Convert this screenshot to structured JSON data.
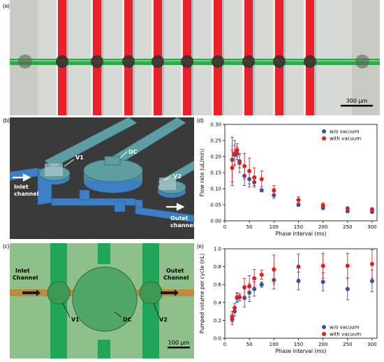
{
  "panels": {
    "a": {
      "label": "(a)",
      "scale_bar": "300 µm",
      "colors": {
        "valve": "#e8212b",
        "channel": "#2fa84a",
        "background": "#d9dcd7"
      }
    },
    "b": {
      "label": "(b)",
      "labels": {
        "v1": "V1",
        "dc": "DC",
        "v2": "V2",
        "inlet": "Inlet channel",
        "outlet": "Outet channel"
      },
      "colors": {
        "background": "#3a3a3a",
        "control": "#5e9ea3",
        "fluid": "#3d7fc4"
      }
    },
    "c": {
      "label": "(c)",
      "labels": {
        "inlet": "Inlet Channel",
        "outlet": "Outet Channel",
        "v1": "V1",
        "dc": "DC",
        "v2": "V2"
      },
      "scale_bar": "100 µm",
      "colors": {
        "background": "#8fbf8a",
        "control": "#1fa65a",
        "fluid": "#c28a3c"
      }
    },
    "d": {
      "label": "(d)"
    },
    "e": {
      "label": "(e)"
    }
  },
  "chart_data": [
    {
      "type": "scatter",
      "panel": "d",
      "xlabel": "Phase interval (ms)",
      "ylabel": "Flow rate (uL/min)",
      "xlim": [
        0,
        310
      ],
      "ylim": [
        0,
        0.3
      ],
      "xticks": [
        0,
        50,
        100,
        150,
        200,
        250,
        300
      ],
      "yticks": [
        0.0,
        0.05,
        0.1,
        0.15,
        0.2,
        0.25,
        0.3
      ],
      "ytick_labels": [
        "0.00",
        "0.05",
        "0.10",
        "0.15",
        "0.20",
        "0.25",
        "0.30"
      ],
      "legend_position": "top-right",
      "series": [
        {
          "name": "w/o vacuum",
          "color": "#3b4fa8",
          "points": [
            {
              "x": 15,
              "y": 0.19,
              "err": 0.07
            },
            {
              "x": 20,
              "y": 0.205,
              "err": 0.03
            },
            {
              "x": 25,
              "y": 0.21,
              "err": 0.02
            },
            {
              "x": 30,
              "y": 0.185,
              "err": 0.02
            },
            {
              "x": 40,
              "y": 0.14,
              "err": 0.03
            },
            {
              "x": 50,
              "y": 0.13,
              "err": 0.025
            },
            {
              "x": 60,
              "y": 0.12,
              "err": 0.01
            },
            {
              "x": 75,
              "y": 0.095,
              "err": 0.005
            },
            {
              "x": 100,
              "y": 0.08,
              "err": 0.01
            },
            {
              "x": 150,
              "y": 0.05,
              "err": 0.005
            },
            {
              "x": 200,
              "y": 0.04,
              "err": 0.005
            },
            {
              "x": 250,
              "y": 0.03,
              "err": 0.005
            },
            {
              "x": 300,
              "y": 0.028,
              "err": 0.005
            }
          ]
        },
        {
          "name": "with vacuum",
          "color": "#e02020",
          "points": [
            {
              "x": 15,
              "y": 0.165,
              "err": 0.055
            },
            {
              "x": 20,
              "y": 0.21,
              "err": 0.04
            },
            {
              "x": 25,
              "y": 0.22,
              "err": 0.02
            },
            {
              "x": 30,
              "y": 0.18,
              "err": 0.03
            },
            {
              "x": 40,
              "y": 0.17,
              "err": 0.04
            },
            {
              "x": 50,
              "y": 0.155,
              "err": 0.04
            },
            {
              "x": 60,
              "y": 0.135,
              "err": 0.03
            },
            {
              "x": 75,
              "y": 0.13,
              "err": 0.025
            },
            {
              "x": 100,
              "y": 0.095,
              "err": 0.015
            },
            {
              "x": 150,
              "y": 0.065,
              "err": 0.01
            },
            {
              "x": 200,
              "y": 0.048,
              "err": 0.008
            },
            {
              "x": 250,
              "y": 0.038,
              "err": 0.006
            },
            {
              "x": 300,
              "y": 0.035,
              "err": 0.006
            }
          ]
        }
      ]
    },
    {
      "type": "scatter",
      "panel": "e",
      "xlabel": "Phase interval (ms)",
      "ylabel": "Pumped volume per cycle (nL)",
      "xlim": [
        0,
        310
      ],
      "ylim": [
        0,
        1.0
      ],
      "xticks": [
        0,
        50,
        100,
        150,
        200,
        250,
        300
      ],
      "yticks": [
        0.0,
        0.2,
        0.4,
        0.6,
        0.8,
        1.0
      ],
      "ytick_labels": [
        "0.0",
        "0.2",
        "0.4",
        "0.6",
        "0.8",
        "1.0"
      ],
      "legend_position": "bottom-right",
      "series": [
        {
          "name": "w/o vacuum",
          "color": "#3b4fa8",
          "points": [
            {
              "x": 15,
              "y": 0.21,
              "err": 0.06
            },
            {
              "x": 20,
              "y": 0.3,
              "err": 0.05
            },
            {
              "x": 25,
              "y": 0.45,
              "err": 0.05
            },
            {
              "x": 30,
              "y": 0.46,
              "err": 0.04
            },
            {
              "x": 40,
              "y": 0.45,
              "err": 0.1
            },
            {
              "x": 50,
              "y": 0.51,
              "err": 0.1
            },
            {
              "x": 60,
              "y": 0.55,
              "err": 0.08
            },
            {
              "x": 75,
              "y": 0.6,
              "err": 0.03
            },
            {
              "x": 100,
              "y": 0.65,
              "err": 0.1
            },
            {
              "x": 150,
              "y": 0.64,
              "err": 0.1
            },
            {
              "x": 200,
              "y": 0.63,
              "err": 0.1
            },
            {
              "x": 250,
              "y": 0.55,
              "err": 0.12
            },
            {
              "x": 300,
              "y": 0.64,
              "err": 0.12
            }
          ]
        },
        {
          "name": "with vacuum",
          "color": "#e02020",
          "points": [
            {
              "x": 15,
              "y": 0.24,
              "err": 0.06
            },
            {
              "x": 20,
              "y": 0.34,
              "err": 0.05
            },
            {
              "x": 25,
              "y": 0.46,
              "err": 0.05
            },
            {
              "x": 30,
              "y": 0.46,
              "err": 0.04
            },
            {
              "x": 40,
              "y": 0.57,
              "err": 0.1
            },
            {
              "x": 50,
              "y": 0.58,
              "err": 0.12
            },
            {
              "x": 60,
              "y": 0.67,
              "err": 0.1
            },
            {
              "x": 75,
              "y": 0.71,
              "err": 0.05
            },
            {
              "x": 100,
              "y": 0.77,
              "err": 0.16
            },
            {
              "x": 150,
              "y": 0.8,
              "err": 0.14
            },
            {
              "x": 200,
              "y": 0.81,
              "err": 0.14
            },
            {
              "x": 250,
              "y": 0.81,
              "err": 0.14
            },
            {
              "x": 300,
              "y": 0.83,
              "err": 0.16
            }
          ]
        }
      ]
    }
  ]
}
